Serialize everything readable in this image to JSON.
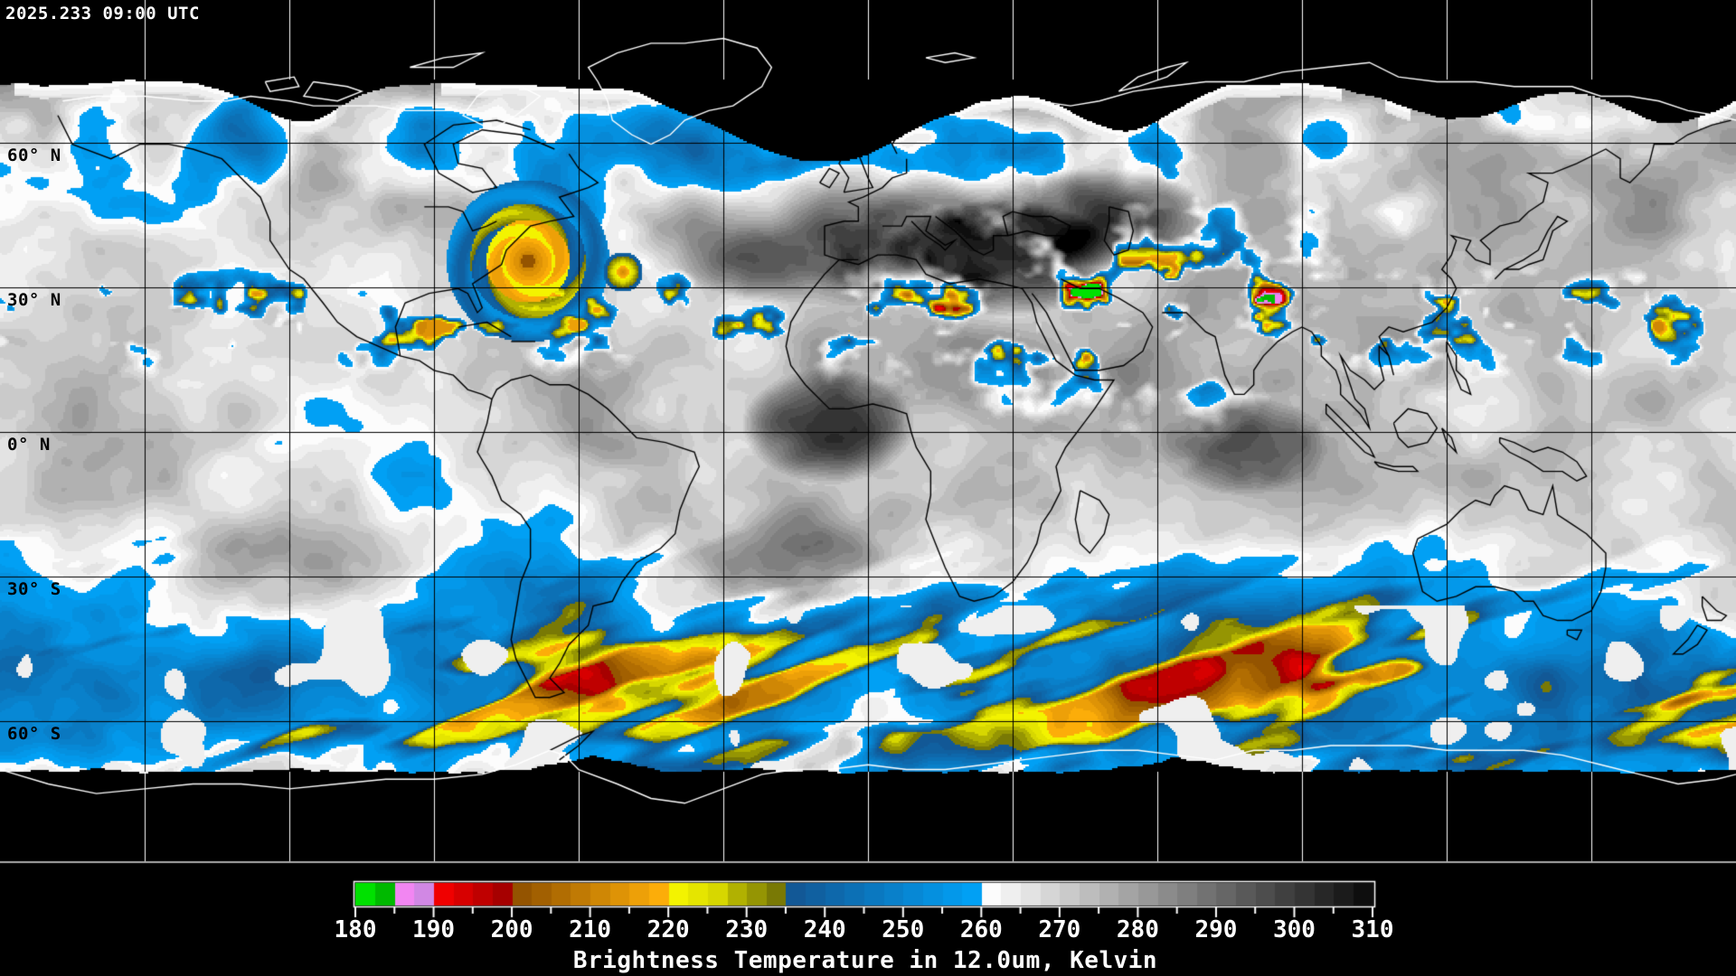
{
  "header": {
    "timestamp": "2025.233 09:00 UTC"
  },
  "map": {
    "latitude_labels": [
      {
        "text": "60° N"
      },
      {
        "text": "30° N"
      },
      {
        "text": "0° N"
      },
      {
        "text": "30° S"
      },
      {
        "text": "60° S"
      }
    ],
    "grid_color_over_data": "#000000",
    "grid_color_over_nodata": "#ffffff",
    "coastline_color_over_data": "#000000",
    "coastline_color_over_nodata": "#ffffff",
    "background_color": "#000000"
  },
  "colorbar": {
    "title": "Brightness Temperature in 12.0um, Kelvin",
    "unit": "Kelvin",
    "min": 180,
    "max": 310,
    "major_tick_step": 10,
    "minor_tick_step": 5,
    "tick_labels": [
      "180",
      "190",
      "200",
      "210",
      "220",
      "230",
      "240",
      "250",
      "260",
      "270",
      "280",
      "290",
      "300",
      "310"
    ],
    "scale_segments": [
      {
        "from": 180,
        "to": 185,
        "from_color": "#00e100",
        "to_color": "#009200"
      },
      {
        "from": 185,
        "to": 190,
        "from_color": "#f286f2",
        "to_color": "#b08ad6"
      },
      {
        "from": 190,
        "to": 200,
        "from_color": "#f00000",
        "to_color": "#8e0000"
      },
      {
        "from": 200,
        "to": 218,
        "from_color": "#945400",
        "to_color": "#ffb00a"
      },
      {
        "from": 218,
        "to": 226,
        "from_color": "#ffff00",
        "to_color": "#d2d200"
      },
      {
        "from": 226,
        "to": 235,
        "from_color": "#c2c200",
        "to_color": "#5e5e08"
      },
      {
        "from": 235,
        "to": 260,
        "from_color": "#125896",
        "to_color": "#00a8ff"
      },
      {
        "from": 260,
        "to": 310,
        "from_color": "#fcfcfc",
        "to_color": "#020202"
      }
    ],
    "tick_color": "#ffffff",
    "border_color": "#ffffff",
    "label_color": "#ffffff"
  }
}
